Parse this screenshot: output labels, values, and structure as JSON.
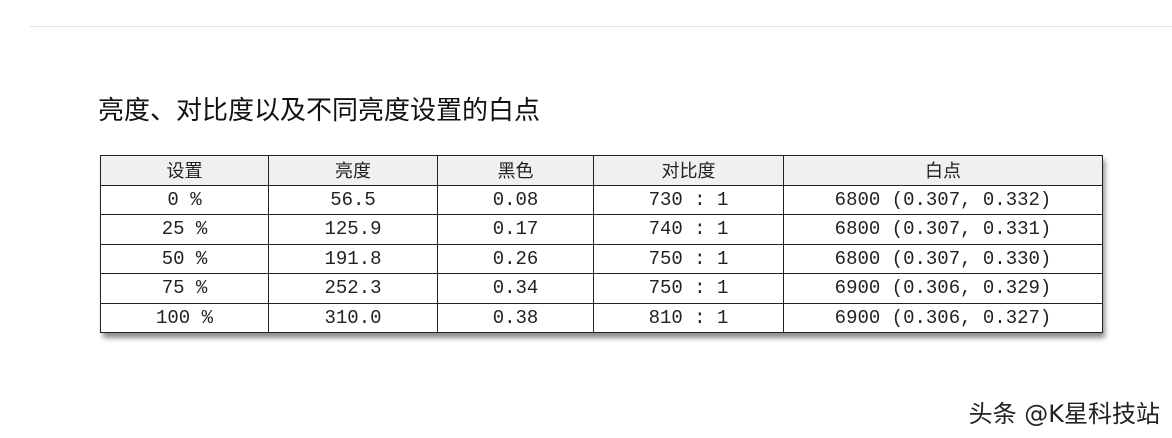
{
  "title": "亮度、对比度以及不同亮度设置的白点",
  "table": {
    "headers": [
      "设置",
      "亮度",
      "黑色",
      "对比度",
      "白点"
    ],
    "rows": [
      [
        "0 %",
        "56.5",
        "0.08",
        "730 : 1",
        "6800 (0.307, 0.332)"
      ],
      [
        "25 %",
        "125.9",
        "0.17",
        "740 : 1",
        "6800 (0.307, 0.331)"
      ],
      [
        "50 %",
        "191.8",
        "0.26",
        "750 : 1",
        "6800 (0.307, 0.330)"
      ],
      [
        "75 %",
        "252.3",
        "0.34",
        "750 : 1",
        "6900 (0.306, 0.329)"
      ],
      [
        "100 %",
        "310.0",
        "0.38",
        "810 : 1",
        "6900 (0.306, 0.327)"
      ]
    ]
  },
  "watermark": "头条 @K星科技站"
}
